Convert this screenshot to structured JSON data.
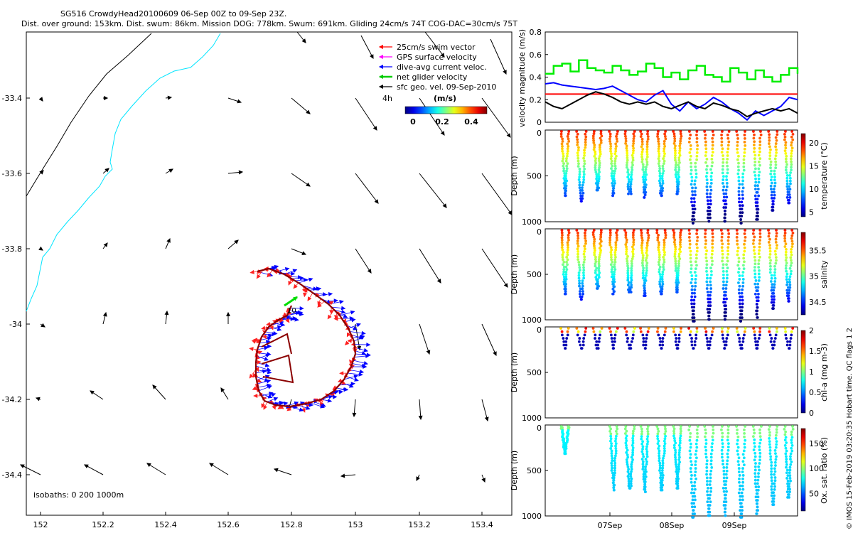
{
  "header": {
    "line1": "SG516 CrowdyHead20100609 06-Sep 00Z to 09-Sep 23Z.",
    "line2": "Dist. over ground: 153km. Dist. swum: 86km. Mission DOG: 778km. Swum: 691km. Gliding 24cm/s 74T COG-DAC=30cm/s 75T"
  },
  "chart_data": [
    {
      "type": "map",
      "x_ticks": [
        "152",
        "152.2",
        "152.4",
        "152.6",
        "152.8",
        "153",
        "153.2",
        "153.4"
      ],
      "y_ticks": [
        "-33.4",
        "-33.6",
        "-33.8",
        "-34",
        "-34.2",
        "-34.4"
      ],
      "xlim": [
        151.95,
        153.5
      ],
      "ylim": [
        -34.5,
        -33.2
      ],
      "legend": [
        {
          "label": "25cm/s swim vector",
          "color": "#ff0000"
        },
        {
          "label": "GPS surface velocity",
          "color": "#ff00ff"
        },
        {
          "label": "dive-avg current veloc.",
          "color": "#0000ff"
        },
        {
          "label": "net glider velocity",
          "color": "#00cc00"
        },
        {
          "label": "sfc geo. vel. 09-Sep-2010",
          "color": "#000000"
        }
      ],
      "scale_label": "4h",
      "colorbar_label": "(m/s)",
      "colorbar_ticks": [
        "0",
        "0.2",
        "0.4"
      ],
      "isobaths_label": "isobaths: 0   200  1000m",
      "track_label": "10"
    },
    {
      "type": "line",
      "ylabel": "velocity magnitude (m/s)",
      "ylim": [
        0,
        0.8
      ],
      "y_ticks": [
        "0",
        "0.2",
        "0.4",
        "0.6",
        "0.8"
      ],
      "reference_value": 0.25,
      "series": [
        {
          "color": "#00ee00",
          "values": [
            0.43,
            0.5,
            0.52,
            0.45,
            0.55,
            0.48,
            0.46,
            0.44,
            0.5,
            0.46,
            0.42,
            0.45,
            0.52,
            0.48,
            0.4,
            0.44,
            0.38,
            0.46,
            0.5,
            0.42,
            0.4,
            0.36,
            0.48,
            0.44,
            0.38,
            0.46,
            0.4,
            0.36,
            0.42,
            0.48,
            0.43
          ]
        },
        {
          "color": "#0000ff",
          "values": [
            0.34,
            0.35,
            0.33,
            0.32,
            0.31,
            0.3,
            0.29,
            0.3,
            0.32,
            0.28,
            0.24,
            0.2,
            0.18,
            0.24,
            0.28,
            0.16,
            0.1,
            0.18,
            0.12,
            0.16,
            0.22,
            0.18,
            0.12,
            0.08,
            0.02,
            0.1,
            0.06,
            0.1,
            0.14,
            0.22,
            0.2
          ]
        },
        {
          "color": "#000000",
          "values": [
            0.18,
            0.14,
            0.12,
            0.16,
            0.2,
            0.24,
            0.27,
            0.25,
            0.22,
            0.18,
            0.16,
            0.18,
            0.16,
            0.18,
            0.14,
            0.12,
            0.15,
            0.18,
            0.14,
            0.12,
            0.17,
            0.15,
            0.12,
            0.1,
            0.05,
            0.08,
            0.1,
            0.12,
            0.1,
            0.12,
            0.08
          ]
        }
      ]
    },
    {
      "type": "scatter",
      "ylabel": "Depth (m)",
      "y_ticks": [
        "0",
        "500",
        "1000"
      ],
      "ylim": [
        0,
        1000
      ],
      "cbar_label": "temperature (°C)",
      "cbar_ticks": [
        "5",
        "10",
        "15",
        "20"
      ]
    },
    {
      "type": "scatter",
      "ylabel": "Depth (m)",
      "y_ticks": [
        "0",
        "500",
        "1000"
      ],
      "ylim": [
        0,
        1000
      ],
      "cbar_label": "salinity",
      "cbar_ticks": [
        "34.5",
        "35",
        "35.5"
      ]
    },
    {
      "type": "scatter",
      "ylabel": "Depth (m)",
      "y_ticks": [
        "0",
        "500",
        "1000"
      ],
      "ylim": [
        0,
        1000
      ],
      "cbar_label": "chl-a (mg m-3)",
      "cbar_ticks": [
        "0",
        "0.5",
        "1",
        "1.5",
        "2"
      ]
    },
    {
      "type": "scatter",
      "ylabel": "Depth (m)",
      "y_ticks": [
        "0",
        "500",
        "1000"
      ],
      "ylim": [
        0,
        1000
      ],
      "cbar_label": "Ox. sat. ratio (%)",
      "cbar_ticks": [
        "50",
        "100",
        "150"
      ]
    },
    {
      "type": "time_axis",
      "x_ticks": [
        "07Sep",
        "08Sep",
        "09Sep"
      ]
    }
  ],
  "side_note": "© IMOS 15-Feb-2019 03:20:35 Hobart time. QC flags 1  2"
}
